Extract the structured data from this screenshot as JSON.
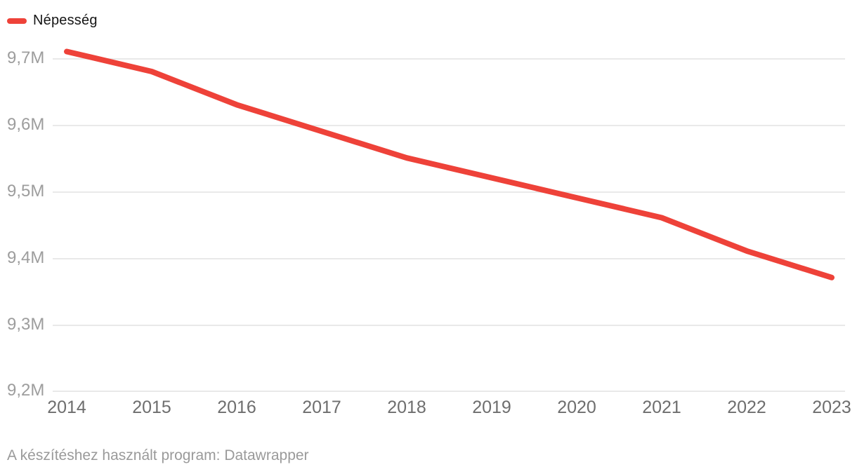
{
  "legend": {
    "label": "Népesség",
    "color": "#ee4239"
  },
  "footer": {
    "text": "A készítéshez használt program: Datawrapper"
  },
  "chart_data": {
    "type": "line",
    "title": "",
    "categories": [
      "2014",
      "2015",
      "2016",
      "2017",
      "2018",
      "2019",
      "2020",
      "2021",
      "2022",
      "2023"
    ],
    "series": [
      {
        "name": "Népesség",
        "values": [
          9.71,
          9.68,
          9.63,
          9.59,
          9.55,
          9.52,
          9.49,
          9.46,
          9.41,
          9.37
        ]
      }
    ],
    "unit": "M",
    "value_scale": "millions",
    "ylim": [
      9.2,
      9.7
    ],
    "yticks": [
      9.7,
      9.6,
      9.5,
      9.4,
      9.3,
      9.2
    ],
    "ytick_labels": [
      "9,7M",
      "9,6M",
      "9,5M",
      "9,4M",
      "9,3M",
      "9,2M"
    ],
    "grid": true,
    "legend_position": "top-left",
    "line_color": "#ee4239",
    "line_width": 8
  }
}
